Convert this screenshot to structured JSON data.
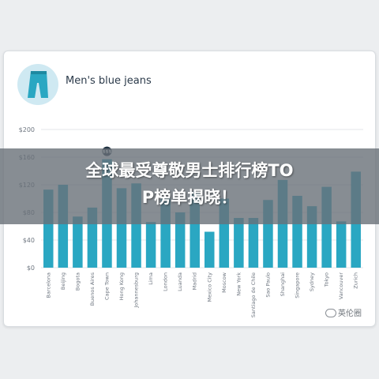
{
  "card": {
    "title": "Men's blue jeans",
    "icon": "jeans-icon"
  },
  "chart_data": {
    "type": "bar",
    "title": "Men's blue jeans",
    "xlabel": "",
    "ylabel": "",
    "ylim": [
      0,
      200
    ],
    "yticks": [
      "$0",
      "$40",
      "$80",
      "$120",
      "$160",
      "$200"
    ],
    "grid": true,
    "categories": [
      "Barcelona",
      "Beijing",
      "Bogota",
      "Buenos Aires",
      "Cape Town",
      "Hong Kong",
      "Johannesburg",
      "Lima",
      "London",
      "Luanda",
      "Madrid",
      "Mexico City",
      "Moscow",
      "New York",
      "Santiago de Chile",
      "Sao Paulo",
      "Shanghai",
      "Singapore",
      "Sydney",
      "Tokyo",
      "Vancouver",
      "Zurich"
    ],
    "values": [
      113,
      120,
      74,
      87,
      157,
      115,
      122,
      66,
      100,
      80,
      110,
      52,
      100,
      72,
      72,
      98,
      127,
      104,
      89,
      117,
      67,
      139
    ],
    "annotation": {
      "category": "Cape Town",
      "text": "$$$"
    },
    "colors": {
      "bar": "#2aa7c2",
      "grid": "#e3e6ea",
      "axis_text": "#6e7680"
    }
  },
  "overlay": {
    "line1": "全球最受尊敬男士排行榜TO",
    "line2": "P榜单揭晓！"
  },
  "watermark": {
    "text": "英伦圈"
  }
}
